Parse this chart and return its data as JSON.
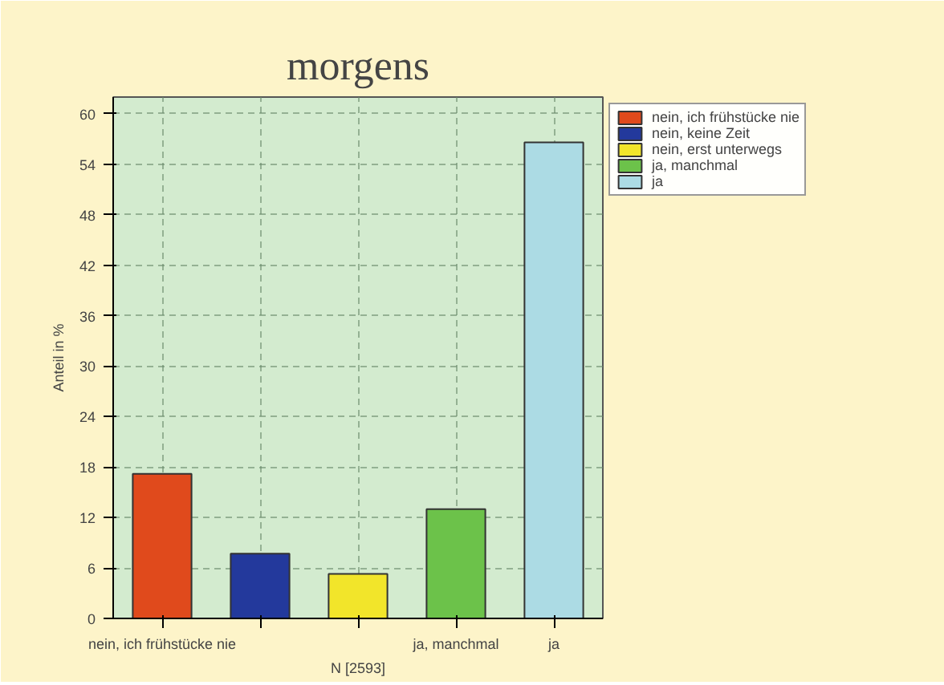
{
  "chart_data": {
    "type": "bar",
    "title": "morgens",
    "xlabel": "N [2593]",
    "ylabel": "Anteil in %",
    "categories": [
      "nein, ich frühstücke nie",
      null,
      null,
      "ja, manchmal",
      "ja"
    ],
    "series": [
      {
        "name": "nein, ich frühstücke nie",
        "color": "#e04a1c",
        "values": [
          17.2,
          null,
          null,
          null,
          null
        ]
      },
      {
        "name": "nein, keine Zeit",
        "color": "#23399c",
        "values": [
          null,
          7.7,
          null,
          null,
          null
        ]
      },
      {
        "name": "nein, erst unterwegs",
        "color": "#f2e52a",
        "values": [
          null,
          null,
          5.3,
          null,
          null
        ]
      },
      {
        "name": "ja, manchmal",
        "color": "#6cc24a",
        "values": [
          null,
          null,
          null,
          13.0,
          null
        ]
      },
      {
        "name": "ja",
        "color": "#acdbe4",
        "values": [
          null,
          null,
          null,
          null,
          56.6
        ]
      }
    ],
    "ylim": [
      0,
      62
    ],
    "yticks": [
      0,
      6,
      12,
      18,
      24,
      30,
      36,
      42,
      48,
      54,
      60
    ],
    "grid": true,
    "legend": "top right"
  }
}
